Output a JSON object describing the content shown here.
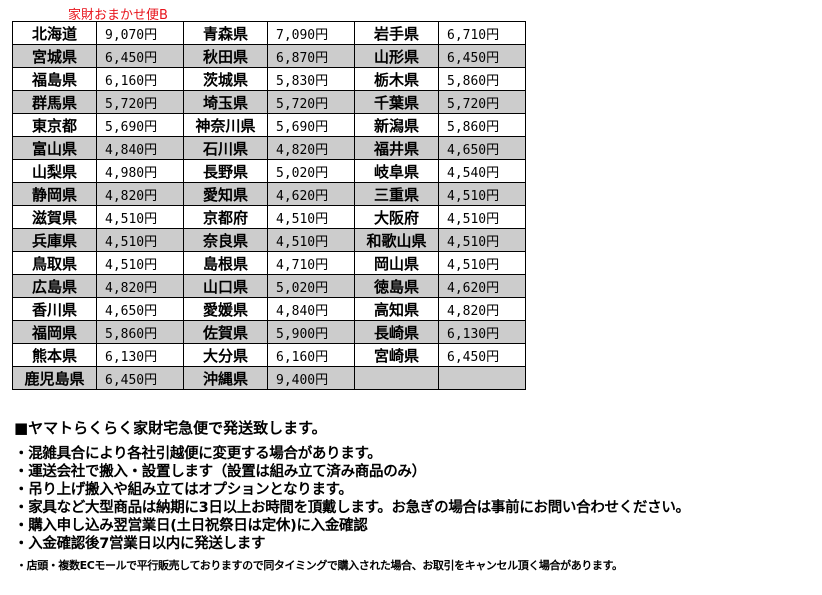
{
  "caption": "家財おまかせ便B",
  "rows": [
    [
      [
        "北海道",
        "9,070円"
      ],
      [
        "青森県",
        "7,090円"
      ],
      [
        "岩手県",
        "6,710円"
      ]
    ],
    [
      [
        "宮城県",
        "6,450円"
      ],
      [
        "秋田県",
        "6,870円"
      ],
      [
        "山形県",
        "6,450円"
      ]
    ],
    [
      [
        "福島県",
        "6,160円"
      ],
      [
        "茨城県",
        "5,830円"
      ],
      [
        "栃木県",
        "5,860円"
      ]
    ],
    [
      [
        "群馬県",
        "5,720円"
      ],
      [
        "埼玉県",
        "5,720円"
      ],
      [
        "千葉県",
        "5,720円"
      ]
    ],
    [
      [
        "東京都",
        "5,690円"
      ],
      [
        "神奈川県",
        "5,690円"
      ],
      [
        "新潟県",
        "5,860円"
      ]
    ],
    [
      [
        "富山県",
        "4,840円"
      ],
      [
        "石川県",
        "4,820円"
      ],
      [
        "福井県",
        "4,650円"
      ]
    ],
    [
      [
        "山梨県",
        "4,980円"
      ],
      [
        "長野県",
        "5,020円"
      ],
      [
        "岐阜県",
        "4,540円"
      ]
    ],
    [
      [
        "静岡県",
        "4,820円"
      ],
      [
        "愛知県",
        "4,620円"
      ],
      [
        "三重県",
        "4,510円"
      ]
    ],
    [
      [
        "滋賀県",
        "4,510円"
      ],
      [
        "京都府",
        "4,510円"
      ],
      [
        "大阪府",
        "4,510円"
      ]
    ],
    [
      [
        "兵庫県",
        "4,510円"
      ],
      [
        "奈良県",
        "4,510円"
      ],
      [
        "和歌山県",
        "4,510円"
      ]
    ],
    [
      [
        "鳥取県",
        "4,510円"
      ],
      [
        "島根県",
        "4,710円"
      ],
      [
        "岡山県",
        "4,510円"
      ]
    ],
    [
      [
        "広島県",
        "4,820円"
      ],
      [
        "山口県",
        "5,020円"
      ],
      [
        "徳島県",
        "4,620円"
      ]
    ],
    [
      [
        "香川県",
        "4,650円"
      ],
      [
        "愛媛県",
        "4,840円"
      ],
      [
        "高知県",
        "4,820円"
      ]
    ],
    [
      [
        "福岡県",
        "5,860円"
      ],
      [
        "佐賀県",
        "5,900円"
      ],
      [
        "長崎県",
        "6,130円"
      ]
    ],
    [
      [
        "熊本県",
        "6,130円"
      ],
      [
        "大分県",
        "6,160円"
      ],
      [
        "宮崎県",
        "6,450円"
      ]
    ],
    [
      [
        "鹿児島県",
        "6,450円"
      ],
      [
        "沖縄県",
        "9,400円"
      ],
      [
        "",
        ""
      ]
    ]
  ],
  "notes": {
    "heading": "■ヤマトらくらく家財宅急便で発送致します。",
    "lines": [
      "・混雑具合により各社引越便に変更する場合があります。",
      "・運送会社で搬入・設置します（設置は組み立て済み商品のみ）",
      "・吊り上げ搬入や組み立てはオプションとなります。",
      "・家具など大型商品は納期に3日以上お時間を頂戴します。お急ぎの場合は事前にお問い合わせください。",
      "・購入申し込み翌営業日(土日祝祭日は定休)に入金確認",
      "・入金確認後7営業日以内に発送します"
    ],
    "small": "・店頭・複数ECモールで平行販売しておりますので同タイミングで購入された場合、お取引をキャンセル頂く場合があります。"
  },
  "colors": {
    "caption": "#e8141c",
    "stripe": "#cccccc"
  }
}
